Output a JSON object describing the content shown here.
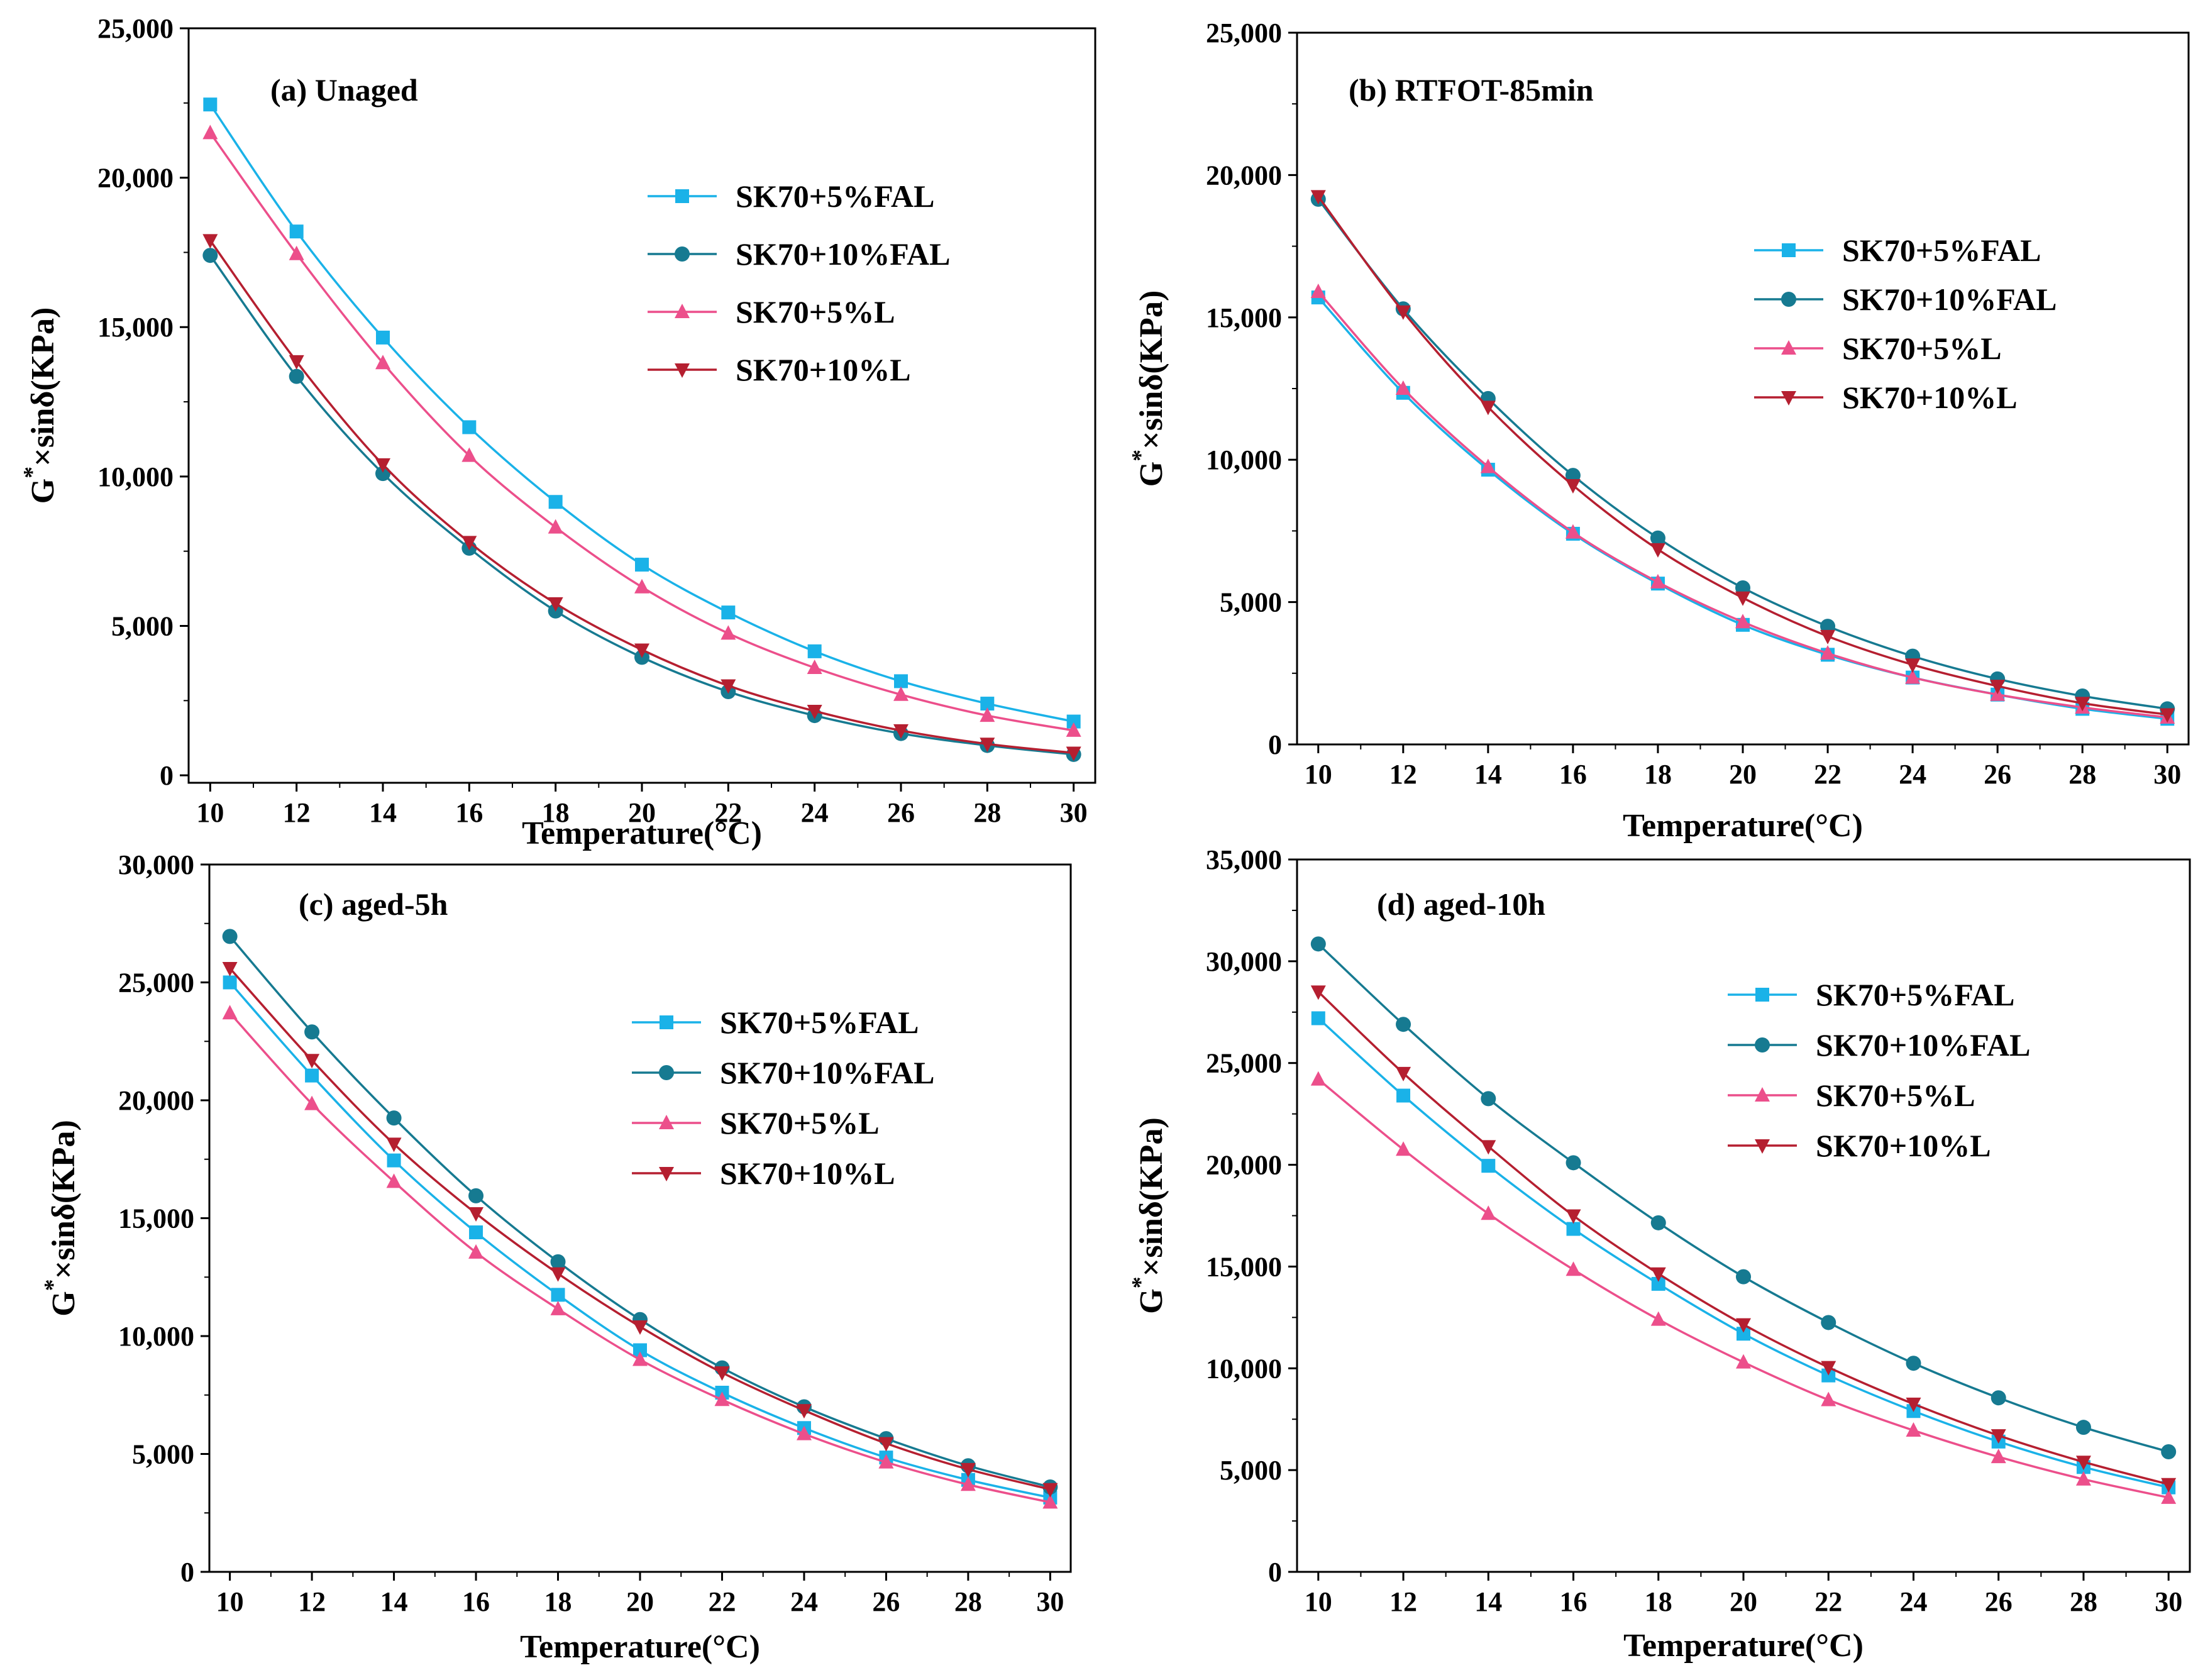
{
  "colors": {
    "SK70+5%FAL": "#1ab2e8",
    "SK70+10%FAL": "#167a91",
    "SK70+5%L": "#ec4f8b",
    "SK70+10%L": "#b51f30"
  },
  "markers": {
    "SK70+5%FAL": "square",
    "SK70+10%FAL": "circle",
    "SK70+5%L": "triangle-up",
    "SK70+10%L": "triangle-down"
  },
  "chart_data": [
    {
      "type": "line",
      "title": "(a) Unaged",
      "xlabel": "Temperature(°C)",
      "ylabel": "G*×sinδ(KPa)",
      "x": [
        10,
        12,
        14,
        16,
        18,
        20,
        22,
        24,
        26,
        28,
        30
      ],
      "x_ticks": [
        "10",
        "12",
        "14",
        "16",
        "18",
        "20",
        "22",
        "24",
        "26",
        "28",
        "30"
      ],
      "xlim": [
        9.5,
        30.5
      ],
      "ylim": [
        -250,
        25000
      ],
      "y_ticks": [
        0,
        5000,
        10000,
        15000,
        20000,
        25000
      ],
      "y_tick_labels": [
        "0",
        "5,000",
        "10,000",
        "15,000",
        "20,000",
        "25,000"
      ],
      "legend": "upper-right",
      "series": [
        {
          "name": "SK70+5%FAL",
          "values": [
            22450,
            18200,
            14650,
            11650,
            9150,
            7050,
            5450,
            4150,
            3150,
            2400,
            1800
          ]
        },
        {
          "name": "SK70+10%FAL",
          "values": [
            17400,
            13350,
            10100,
            7600,
            5500,
            3950,
            2800,
            2000,
            1400,
            1000,
            700
          ]
        },
        {
          "name": "SK70+5%L",
          "values": [
            21500,
            17450,
            13800,
            10700,
            8300,
            6300,
            4750,
            3600,
            2700,
            2000,
            1500
          ]
        },
        {
          "name": "SK70+10%L",
          "values": [
            17900,
            13850,
            10400,
            7800,
            5750,
            4200,
            3000,
            2150,
            1500,
            1050,
            750
          ]
        }
      ]
    },
    {
      "type": "line",
      "title": "(b) RTFOT-85min",
      "xlabel": "Temperature(°C)",
      "ylabel": "G*×sinδ(KPa)",
      "x": [
        10,
        12,
        14,
        16,
        18,
        20,
        22,
        24,
        26,
        28,
        30
      ],
      "x_ticks": [
        "10",
        "12",
        "14",
        "16",
        "18",
        "20",
        "22",
        "24",
        "26",
        "28",
        "30"
      ],
      "xlim": [
        9.5,
        30.5
      ],
      "ylim": [
        0,
        25000
      ],
      "y_ticks": [
        0,
        5000,
        10000,
        15000,
        20000,
        25000
      ],
      "y_tick_labels": [
        "0",
        "5,000",
        "10,000",
        "15,000",
        "20,000",
        "25,000"
      ],
      "legend": "right",
      "series": [
        {
          "name": "SK70+5%FAL",
          "values": [
            15700,
            12350,
            9650,
            7400,
            5650,
            4200,
            3150,
            2350,
            1750,
            1250,
            900
          ]
        },
        {
          "name": "SK70+10%FAL",
          "values": [
            19150,
            15300,
            12150,
            9450,
            7250,
            5500,
            4150,
            3100,
            2300,
            1700,
            1250
          ]
        },
        {
          "name": "SK70+5%L",
          "values": [
            15900,
            12500,
            9750,
            7450,
            5700,
            4300,
            3200,
            2350,
            1750,
            1300,
            950
          ]
        },
        {
          "name": "SK70+10%L",
          "values": [
            19250,
            15200,
            11850,
            9100,
            6850,
            5150,
            3800,
            2800,
            2050,
            1450,
            1050
          ]
        }
      ]
    },
    {
      "type": "line",
      "title": "(c) aged-5h",
      "xlabel": "Temperature(°C)",
      "ylabel": "G*×sinδ(KPa)",
      "x": [
        10,
        12,
        14,
        16,
        18,
        20,
        22,
        24,
        26,
        28,
        30
      ],
      "x_ticks": [
        "10",
        "12",
        "14",
        "16",
        "18",
        "20",
        "22",
        "24",
        "26",
        "28",
        "30"
      ],
      "xlim": [
        9.5,
        30.5
      ],
      "ylim": [
        0,
        30000
      ],
      "y_ticks": [
        0,
        5000,
        10000,
        15000,
        20000,
        25000,
        30000
      ],
      "y_tick_labels": [
        "0",
        "5,000",
        "10,000",
        "15,000",
        "20,000",
        "25,000",
        "30,000"
      ],
      "legend": "right",
      "series": [
        {
          "name": "SK70+5%FAL",
          "values": [
            25000,
            21050,
            17450,
            14400,
            11750,
            9400,
            7600,
            6100,
            4850,
            3900,
            3150
          ]
        },
        {
          "name": "SK70+10%FAL",
          "values": [
            26950,
            22900,
            19250,
            15950,
            13150,
            10700,
            8650,
            7000,
            5650,
            4500,
            3600
          ]
        },
        {
          "name": "SK70+5%L",
          "values": [
            23700,
            19850,
            16550,
            13550,
            11150,
            9000,
            7300,
            5850,
            4650,
            3700,
            2950
          ]
        },
        {
          "name": "SK70+10%L",
          "values": [
            25600,
            21700,
            18150,
            15200,
            12650,
            10400,
            8450,
            6850,
            5450,
            4350,
            3500
          ]
        }
      ]
    },
    {
      "type": "line",
      "title": "(d) aged-10h",
      "xlabel": "Temperature(°C)",
      "ylabel": "G*×sinδ(KPa)",
      "x": [
        10,
        12,
        14,
        16,
        18,
        20,
        22,
        24,
        26,
        28,
        30
      ],
      "x_ticks": [
        "10",
        "12",
        "14",
        "16",
        "18",
        "20",
        "22",
        "24",
        "26",
        "28",
        "30"
      ],
      "xlim": [
        9.5,
        30.5
      ],
      "ylim": [
        0,
        35000
      ],
      "y_ticks": [
        0,
        5000,
        10000,
        15000,
        20000,
        25000,
        30000,
        35000
      ],
      "y_tick_labels": [
        "0",
        "5,000",
        "10,000",
        "15,000",
        "20,000",
        "25,000",
        "30,000",
        "35,000"
      ],
      "legend": "right",
      "series": [
        {
          "name": "SK70+5%FAL",
          "values": [
            27200,
            23400,
            19950,
            16850,
            14150,
            11700,
            9650,
            7900,
            6400,
            5150,
            4150
          ]
        },
        {
          "name": "SK70+10%FAL",
          "values": [
            30850,
            26900,
            23250,
            20100,
            17150,
            14500,
            12250,
            10250,
            8550,
            7100,
            5900
          ]
        },
        {
          "name": "SK70+5%L",
          "values": [
            24200,
            20750,
            17600,
            14850,
            12400,
            10300,
            8450,
            6950,
            5650,
            4550,
            3650
          ]
        },
        {
          "name": "SK70+10%L",
          "values": [
            28500,
            24500,
            20900,
            17500,
            14650,
            12150,
            10050,
            8250,
            6700,
            5400,
            4300
          ]
        }
      ]
    }
  ]
}
